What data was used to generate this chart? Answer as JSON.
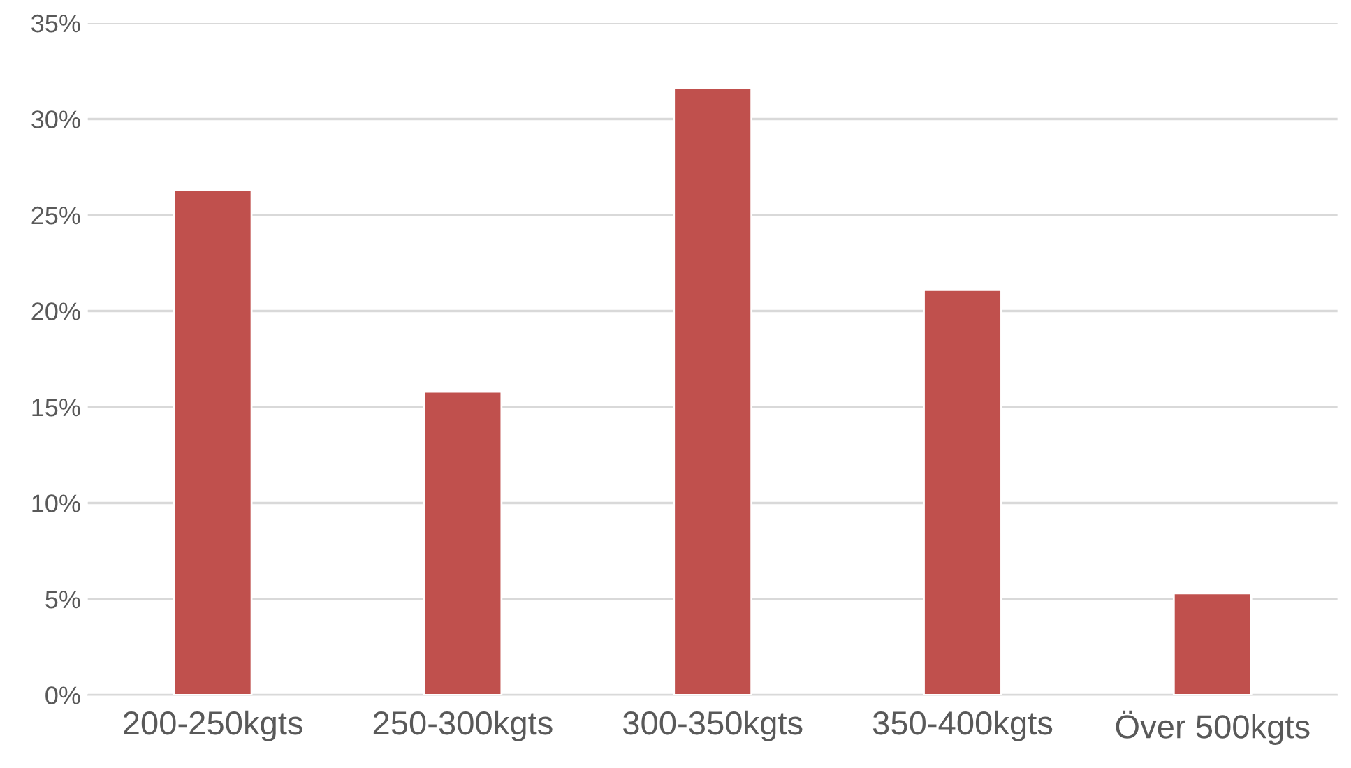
{
  "chart_data": {
    "type": "bar",
    "categories": [
      "200-250kgts",
      "250-300kgts",
      "300-350kgts",
      "350-400kgts",
      "Över 500kgts"
    ],
    "values": [
      26.3,
      15.8,
      31.6,
      21.1,
      5.3
    ],
    "color": "#c0504d",
    "ylim": [
      0,
      35
    ],
    "yticks": [
      {
        "value": 0,
        "label": "0%"
      },
      {
        "value": 5,
        "label": "5%"
      },
      {
        "value": 10,
        "label": "10%"
      },
      {
        "value": 15,
        "label": "15%"
      },
      {
        "value": 20,
        "label": "20%"
      },
      {
        "value": 25,
        "label": "25%"
      },
      {
        "value": 30,
        "label": "30%"
      },
      {
        "value": 35,
        "label": "35%"
      }
    ],
    "grid": "y",
    "legend": false
  }
}
